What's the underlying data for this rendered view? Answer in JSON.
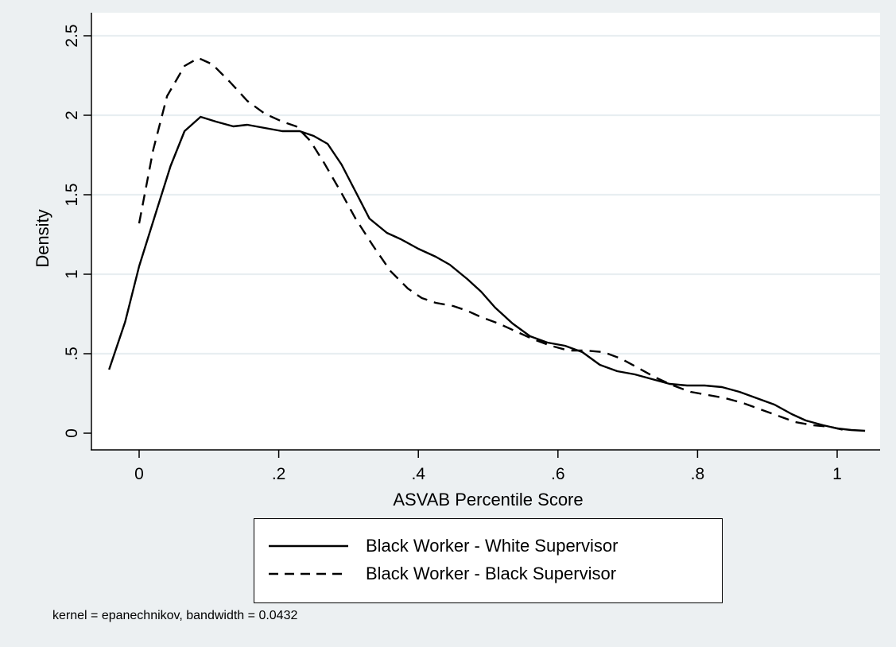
{
  "chart_data": {
    "type": "line",
    "title": "",
    "xlabel": "ASVAB Percentile Score",
    "ylabel": "Density",
    "xlim": [
      -0.05,
      1.05
    ],
    "ylim": [
      0,
      2.5
    ],
    "xticks": [
      0,
      0.2,
      0.4,
      0.6,
      0.8,
      1
    ],
    "xtick_labels": [
      "0",
      ".2",
      ".4",
      ".6",
      ".8",
      "1"
    ],
    "yticks": [
      0,
      0.5,
      1,
      1.5,
      2,
      2.5
    ],
    "ytick_labels": [
      "0",
      ".5",
      "1",
      "1.5",
      "2",
      "2.5"
    ],
    "grid": true,
    "legend_position": "bottom",
    "series": [
      {
        "name": "Black Worker - White Supervisor",
        "style": "solid",
        "color": "#000000",
        "points": [
          [
            -0.043,
            0.4
          ],
          [
            -0.02,
            0.7
          ],
          [
            0.0,
            1.05
          ],
          [
            0.025,
            1.4
          ],
          [
            0.045,
            1.68
          ],
          [
            0.065,
            1.9
          ],
          [
            0.088,
            1.99
          ],
          [
            0.11,
            1.96
          ],
          [
            0.135,
            1.93
          ],
          [
            0.155,
            1.94
          ],
          [
            0.18,
            1.92
          ],
          [
            0.205,
            1.9
          ],
          [
            0.23,
            1.9
          ],
          [
            0.25,
            1.87
          ],
          [
            0.27,
            1.82
          ],
          [
            0.29,
            1.69
          ],
          [
            0.31,
            1.52
          ],
          [
            0.33,
            1.35
          ],
          [
            0.355,
            1.26
          ],
          [
            0.375,
            1.22
          ],
          [
            0.4,
            1.16
          ],
          [
            0.425,
            1.11
          ],
          [
            0.445,
            1.06
          ],
          [
            0.47,
            0.97
          ],
          [
            0.49,
            0.89
          ],
          [
            0.51,
            0.79
          ],
          [
            0.535,
            0.69
          ],
          [
            0.56,
            0.61
          ],
          [
            0.585,
            0.57
          ],
          [
            0.61,
            0.55
          ],
          [
            0.635,
            0.51
          ],
          [
            0.66,
            0.43
          ],
          [
            0.685,
            0.39
          ],
          [
            0.71,
            0.37
          ],
          [
            0.735,
            0.34
          ],
          [
            0.76,
            0.31
          ],
          [
            0.785,
            0.3
          ],
          [
            0.81,
            0.3
          ],
          [
            0.835,
            0.29
          ],
          [
            0.86,
            0.26
          ],
          [
            0.885,
            0.22
          ],
          [
            0.91,
            0.18
          ],
          [
            0.935,
            0.12
          ],
          [
            0.955,
            0.08
          ],
          [
            0.98,
            0.05
          ],
          [
            1.0,
            0.03
          ],
          [
            1.02,
            0.02
          ],
          [
            1.04,
            0.015
          ]
        ]
      },
      {
        "name": "Black Worker - Black Supervisor",
        "style": "dashed",
        "color": "#000000",
        "points": [
          [
            0.0,
            1.32
          ],
          [
            0.02,
            1.78
          ],
          [
            0.04,
            2.12
          ],
          [
            0.065,
            2.31
          ],
          [
            0.085,
            2.36
          ],
          [
            0.105,
            2.32
          ],
          [
            0.13,
            2.21
          ],
          [
            0.155,
            2.09
          ],
          [
            0.18,
            2.01
          ],
          [
            0.205,
            1.96
          ],
          [
            0.225,
            1.93
          ],
          [
            0.245,
            1.84
          ],
          [
            0.265,
            1.7
          ],
          [
            0.29,
            1.51
          ],
          [
            0.31,
            1.35
          ],
          [
            0.335,
            1.18
          ],
          [
            0.36,
            1.02
          ],
          [
            0.385,
            0.91
          ],
          [
            0.405,
            0.85
          ],
          [
            0.425,
            0.82
          ],
          [
            0.45,
            0.8
          ],
          [
            0.47,
            0.77
          ],
          [
            0.49,
            0.73
          ],
          [
            0.515,
            0.69
          ],
          [
            0.54,
            0.64
          ],
          [
            0.565,
            0.59
          ],
          [
            0.59,
            0.55
          ],
          [
            0.615,
            0.52
          ],
          [
            0.64,
            0.52
          ],
          [
            0.665,
            0.51
          ],
          [
            0.69,
            0.47
          ],
          [
            0.715,
            0.41
          ],
          [
            0.74,
            0.35
          ],
          [
            0.765,
            0.3
          ],
          [
            0.79,
            0.26
          ],
          [
            0.815,
            0.24
          ],
          [
            0.84,
            0.22
          ],
          [
            0.865,
            0.19
          ],
          [
            0.89,
            0.15
          ],
          [
            0.915,
            0.11
          ],
          [
            0.94,
            0.07
          ],
          [
            0.965,
            0.05
          ],
          [
            0.99,
            0.04
          ],
          [
            1.01,
            0.02
          ]
        ]
      }
    ]
  },
  "legend": {
    "items": [
      "Black Worker - White Supervisor",
      "Black Worker - Black Supervisor"
    ]
  },
  "note": "kernel = epanechnikov, bandwidth = 0.0432"
}
